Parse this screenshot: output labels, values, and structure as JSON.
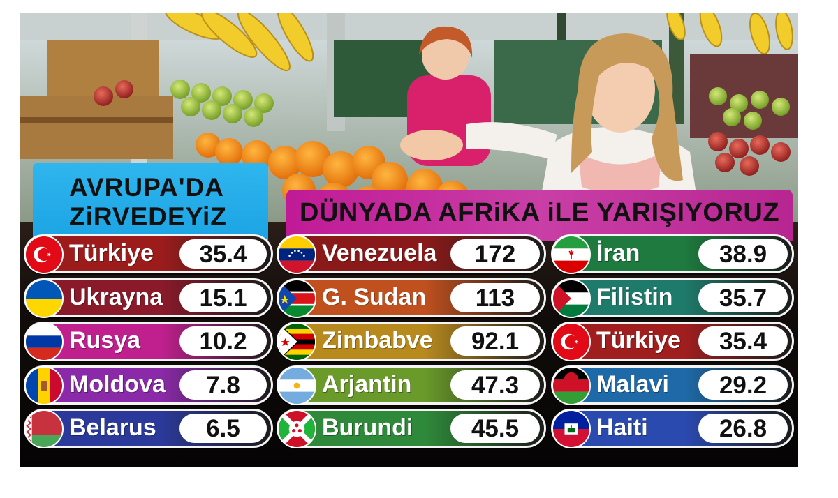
{
  "europe": {
    "title_line1": "AVRUPA'DA",
    "title_line2": "ZiRVEDEYiZ",
    "rows": [
      {
        "country": "Türkiye",
        "value": "35.4",
        "flag": "turkey-flag",
        "color": "#9c1c1c"
      },
      {
        "country": "Ukrayna",
        "value": "15.1",
        "flag": "ukraine-flag",
        "color": "#8a1a2a"
      },
      {
        "country": "Rusya",
        "value": "10.2",
        "flag": "russia-flag",
        "color": "#c0208e"
      },
      {
        "country": "Moldova",
        "value": "7.8",
        "flag": "moldova-flag",
        "color": "#8a2aa8"
      },
      {
        "country": "Belarus",
        "value": "6.5",
        "flag": "belarus-flag",
        "color": "#2b3a9a"
      }
    ]
  },
  "world": {
    "title": "DÜNYADA AFRiKA iLE YARIŞIYORUZ",
    "col1": [
      {
        "country": "Venezuela",
        "value": "172",
        "flag": "venezuela-flag",
        "color": "#8a1a1a"
      },
      {
        "country": "G. Sudan",
        "value": "113",
        "flag": "south-sudan-flag",
        "color": "#c0501e"
      },
      {
        "country": "Zimbabve",
        "value": "92.1",
        "flag": "zimbabwe-flag",
        "color": "#b88a1e"
      },
      {
        "country": "Arjantin",
        "value": "47.3",
        "flag": "argentina-flag",
        "color": "#6a9a2a"
      },
      {
        "country": "Burundi",
        "value": "45.5",
        "flag": "burundi-flag",
        "color": "#2e8a3a"
      }
    ],
    "col2": [
      {
        "country": "İran",
        "value": "38.9",
        "flag": "iran-flag",
        "color": "#1e7a3e"
      },
      {
        "country": "Filistin",
        "value": "35.7",
        "flag": "palestine-flag",
        "color": "#1e7a6a"
      },
      {
        "country": "Türkiye",
        "value": "35.4",
        "flag": "turkey-flag",
        "color": "#a01e1e"
      },
      {
        "country": "Malavi",
        "value": "29.2",
        "flag": "malawi-flag",
        "color": "#1e6aa8"
      },
      {
        "country": "Haiti",
        "value": "26.8",
        "flag": "haiti-flag",
        "color": "#2a4ab0"
      }
    ]
  }
}
